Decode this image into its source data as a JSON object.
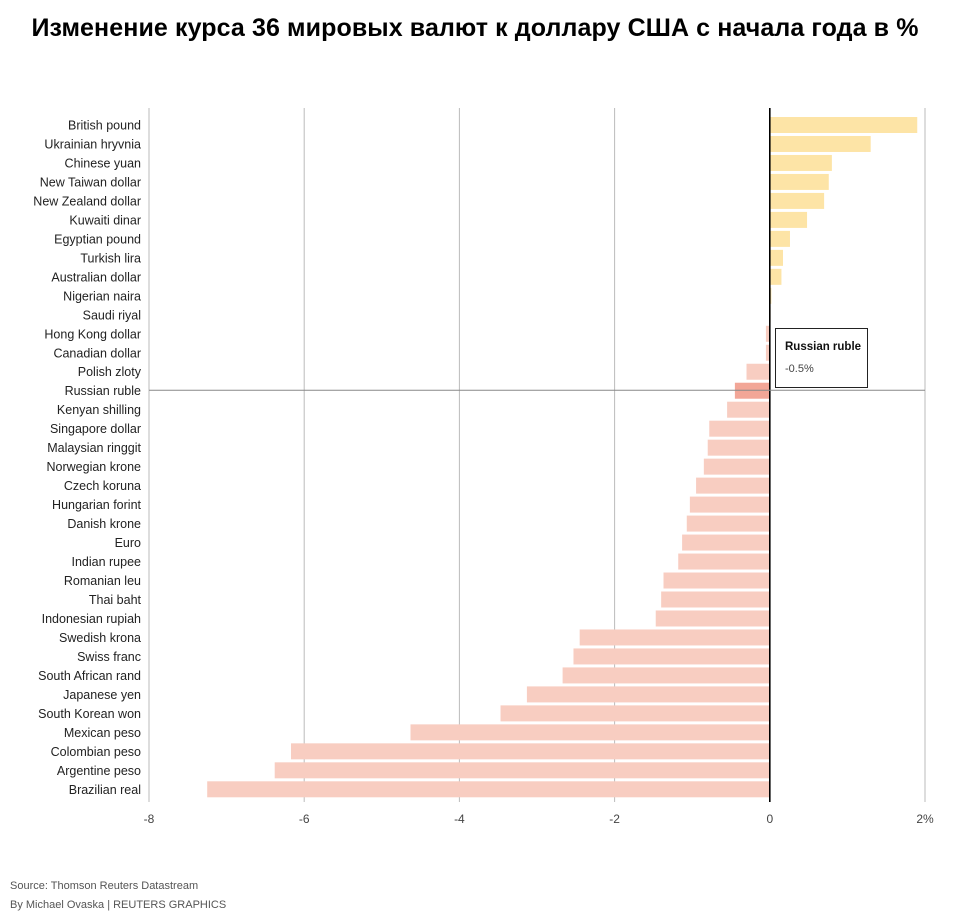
{
  "title": "Изменение курса 36 мировых валют к доллару США с начала года в %",
  "tooltip": {
    "name": "Russian ruble",
    "value": "-0.5%"
  },
  "footer": {
    "source": "Source: Thomson Reuters Datastream",
    "credit": "By Michael Ovaska | REUTERS GRAPHICS"
  },
  "colors": {
    "positive": "#fde4a6",
    "negative": "#f8cdc1",
    "highlight": "#f2a697",
    "zero_line": "#000000",
    "grid": "#bbbbbb"
  },
  "chart_data": {
    "type": "bar",
    "orientation": "horizontal",
    "highlight": "Russian ruble",
    "xlim": [
      -8,
      2
    ],
    "xticks": [
      -8,
      -6,
      -4,
      -2,
      0,
      2
    ],
    "xtick_labels": [
      "-8",
      "-6",
      "-4",
      "-2",
      "0",
      "2%"
    ],
    "grid": true,
    "categories": [
      "British pound",
      "Ukrainian hryvnia",
      "Chinese yuan",
      "New Taiwan dollar",
      "New Zealand dollar",
      "Kuwaiti dinar",
      "Egyptian pound",
      "Turkish lira",
      "Australian dollar",
      "Nigerian naira",
      "Saudi riyal",
      "Hong Kong dollar",
      "Canadian dollar",
      "Polish zloty",
      "Russian ruble",
      "Kenyan shilling",
      "Singapore dollar",
      "Malaysian ringgit",
      "Norwegian krone",
      "Czech koruna",
      "Hungarian forint",
      "Danish krone",
      "Euro",
      "Indian rupee",
      "Romanian leu",
      "Thai baht",
      "Indonesian rupiah",
      "Swedish krona",
      "Swiss franc",
      "South African rand",
      "Japanese yen",
      "South Korean won",
      "Mexican peso",
      "Colombian peso",
      "Argentine peso",
      "Brazilian real"
    ],
    "values": [
      1.9,
      1.3,
      0.8,
      0.76,
      0.7,
      0.48,
      0.26,
      0.17,
      0.15,
      0.02,
      0.01,
      -0.05,
      -0.05,
      -0.3,
      -0.45,
      -0.55,
      -0.78,
      -0.8,
      -0.85,
      -0.95,
      -1.03,
      -1.07,
      -1.13,
      -1.18,
      -1.37,
      -1.4,
      -1.47,
      -2.45,
      -2.53,
      -2.67,
      -3.13,
      -3.47,
      -4.63,
      -6.17,
      -6.38,
      -7.25
    ]
  }
}
